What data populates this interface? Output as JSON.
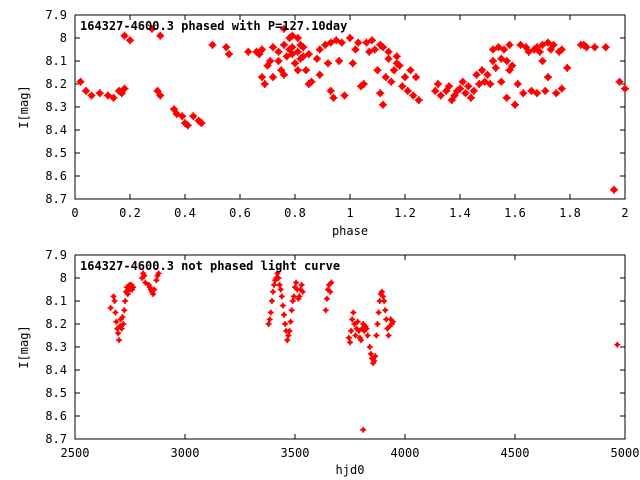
{
  "chart_data": [
    {
      "type": "scatter",
      "title": "164327-4600.3 phased with P=127.10day",
      "xlabel": "phase",
      "ylabel": "I[mag]",
      "xlim": [
        0,
        2
      ],
      "ylim": [
        8.7,
        7.9
      ],
      "y_inverted": true,
      "x_ticks": [
        "0",
        "0.2",
        "0.4",
        "0.6",
        "0.8",
        "1",
        "1.2",
        "1.4",
        "1.6",
        "1.8",
        "2"
      ],
      "y_ticks": [
        "7.9",
        "8",
        "8.1",
        "8.2",
        "8.3",
        "8.4",
        "8.5",
        "8.6",
        "8.7"
      ],
      "grid": false,
      "marker_color": "#ff0000",
      "points": [
        [
          0.02,
          8.19
        ],
        [
          0.04,
          8.23
        ],
        [
          0.06,
          8.25
        ],
        [
          0.09,
          8.24
        ],
        [
          0.12,
          8.25
        ],
        [
          0.14,
          8.26
        ],
        [
          0.16,
          8.23
        ],
        [
          0.17,
          8.24
        ],
        [
          0.18,
          8.22
        ],
        [
          0.18,
          7.99
        ],
        [
          0.2,
          8.01
        ],
        [
          0.28,
          7.96
        ],
        [
          0.3,
          8.23
        ],
        [
          0.31,
          8.25
        ],
        [
          0.31,
          7.99
        ],
        [
          0.36,
          8.31
        ],
        [
          0.37,
          8.33
        ],
        [
          0.39,
          8.34
        ],
        [
          0.4,
          8.37
        ],
        [
          0.41,
          8.38
        ],
        [
          0.43,
          8.34
        ],
        [
          0.45,
          8.36
        ],
        [
          0.46,
          8.37
        ],
        [
          0.5,
          8.03
        ],
        [
          0.55,
          8.04
        ],
        [
          0.56,
          8.07
        ],
        [
          0.63,
          8.06
        ],
        [
          0.66,
          8.06
        ],
        [
          0.67,
          8.07
        ],
        [
          0.68,
          8.05
        ],
        [
          0.68,
          8.17
        ],
        [
          0.69,
          8.2
        ],
        [
          0.7,
          8.12
        ],
        [
          0.71,
          8.1
        ],
        [
          0.72,
          8.17
        ],
        [
          0.72,
          8.04
        ],
        [
          0.74,
          8.1
        ],
        [
          0.74,
          8.06
        ],
        [
          0.75,
          8.14
        ],
        [
          0.76,
          8.16
        ],
        [
          0.76,
          8.03
        ],
        [
          0.76,
          7.96
        ],
        [
          0.77,
          8.08
        ],
        [
          0.78,
          8.05
        ],
        [
          0.78,
          8.0
        ],
        [
          0.79,
          8.04
        ],
        [
          0.79,
          8.07
        ],
        [
          0.79,
          7.99
        ],
        [
          0.8,
          8.11
        ],
        [
          0.81,
          8.14
        ],
        [
          0.81,
          8.0
        ],
        [
          0.81,
          8.06
        ],
        [
          0.82,
          8.03
        ],
        [
          0.82,
          8.09
        ],
        [
          0.83,
          8.04
        ],
        [
          0.83,
          8.08
        ],
        [
          0.84,
          8.14
        ],
        [
          0.85,
          8.07
        ],
        [
          0.85,
          8.2
        ],
        [
          0.86,
          8.19
        ],
        [
          0.88,
          8.09
        ],
        [
          0.89,
          8.05
        ],
        [
          0.89,
          8.16
        ],
        [
          0.91,
          8.03
        ],
        [
          0.92,
          8.11
        ],
        [
          0.93,
          8.23
        ],
        [
          0.93,
          8.02
        ],
        [
          0.94,
          8.26
        ],
        [
          0.95,
          8.01
        ],
        [
          0.96,
          8.1
        ],
        [
          0.97,
          8.02
        ],
        [
          0.98,
          8.25
        ],
        [
          1.0,
          8.0
        ],
        [
          1.01,
          8.11
        ],
        [
          1.02,
          8.05
        ],
        [
          1.03,
          8.02
        ],
        [
          1.04,
          8.21
        ],
        [
          1.05,
          8.2
        ],
        [
          1.06,
          8.02
        ],
        [
          1.07,
          8.06
        ],
        [
          1.08,
          8.01
        ],
        [
          1.09,
          8.05
        ],
        [
          1.1,
          8.14
        ],
        [
          1.11,
          8.24
        ],
        [
          1.11,
          8.03
        ],
        [
          1.12,
          8.29
        ],
        [
          1.12,
          8.04
        ],
        [
          1.13,
          8.17
        ],
        [
          1.14,
          8.09
        ],
        [
          1.14,
          8.06
        ],
        [
          1.15,
          8.19
        ],
        [
          1.16,
          8.14
        ],
        [
          1.17,
          8.11
        ],
        [
          1.17,
          8.08
        ],
        [
          1.18,
          8.12
        ],
        [
          1.19,
          8.21
        ],
        [
          1.2,
          8.17
        ],
        [
          1.21,
          8.23
        ],
        [
          1.22,
          8.14
        ],
        [
          1.23,
          8.25
        ],
        [
          1.24,
          8.17
        ],
        [
          1.25,
          8.27
        ],
        [
          1.31,
          8.23
        ],
        [
          1.32,
          8.2
        ],
        [
          1.33,
          8.25
        ],
        [
          1.35,
          8.23
        ],
        [
          1.36,
          8.21
        ],
        [
          1.37,
          8.27
        ],
        [
          1.38,
          8.25
        ],
        [
          1.39,
          8.23
        ],
        [
          1.4,
          8.22
        ],
        [
          1.41,
          8.19
        ],
        [
          1.42,
          8.24
        ],
        [
          1.43,
          8.21
        ],
        [
          1.44,
          8.26
        ],
        [
          1.45,
          8.23
        ],
        [
          1.46,
          8.16
        ],
        [
          1.47,
          8.2
        ],
        [
          1.48,
          8.14
        ],
        [
          1.49,
          8.19
        ],
        [
          1.5,
          8.16
        ],
        [
          1.51,
          8.2
        ],
        [
          1.52,
          8.1
        ],
        [
          1.52,
          8.05
        ],
        [
          1.53,
          8.13
        ],
        [
          1.54,
          8.04
        ],
        [
          1.55,
          8.09
        ],
        [
          1.55,
          8.19
        ],
        [
          1.56,
          8.05
        ],
        [
          1.57,
          8.1
        ],
        [
          1.57,
          8.26
        ],
        [
          1.58,
          8.14
        ],
        [
          1.58,
          8.03
        ],
        [
          1.59,
          8.12
        ],
        [
          1.6,
          8.29
        ],
        [
          1.61,
          8.2
        ],
        [
          1.62,
          8.03
        ],
        [
          1.63,
          8.24
        ],
        [
          1.64,
          8.04
        ],
        [
          1.65,
          8.06
        ],
        [
          1.66,
          8.23
        ],
        [
          1.67,
          8.05
        ],
        [
          1.68,
          8.24
        ],
        [
          1.68,
          8.04
        ],
        [
          1.69,
          8.06
        ],
        [
          1.7,
          8.03
        ],
        [
          1.7,
          8.1
        ],
        [
          1.71,
          8.23
        ],
        [
          1.72,
          8.17
        ],
        [
          1.72,
          8.02
        ],
        [
          1.73,
          8.05
        ],
        [
          1.74,
          8.03
        ],
        [
          1.75,
          8.24
        ],
        [
          1.76,
          8.06
        ],
        [
          1.77,
          8.05
        ],
        [
          1.77,
          8.22
        ],
        [
          1.79,
          8.13
        ],
        [
          1.84,
          8.03
        ],
        [
          1.85,
          8.03
        ],
        [
          1.86,
          8.04
        ],
        [
          1.89,
          8.04
        ],
        [
          1.93,
          8.04
        ],
        [
          1.96,
          8.66
        ],
        [
          1.98,
          8.19
        ],
        [
          2.0,
          8.22
        ]
      ]
    },
    {
      "type": "scatter",
      "title": "164327-4600.3 not phased light curve",
      "xlabel": "hjd0",
      "ylabel": "I[mag]",
      "xlim": [
        2500,
        5000
      ],
      "ylim": [
        8.7,
        7.9
      ],
      "y_inverted": true,
      "x_ticks": [
        "2500",
        "3000",
        "3500",
        "4000",
        "4500",
        "5000"
      ],
      "y_ticks": [
        "7.9",
        "8",
        "8.1",
        "8.2",
        "8.3",
        "8.4",
        "8.5",
        "8.6",
        "8.7"
      ],
      "grid": false,
      "marker_color": "#ff0000",
      "points": [
        [
          2662,
          8.13
        ],
        [
          2675,
          8.08
        ],
        [
          2680,
          8.1
        ],
        [
          2684,
          8.15
        ],
        [
          2688,
          8.19
        ],
        [
          2692,
          8.22
        ],
        [
          2696,
          8.24
        ],
        [
          2700,
          8.27
        ],
        [
          2704,
          8.21
        ],
        [
          2708,
          8.18
        ],
        [
          2712,
          8.22
        ],
        [
          2716,
          8.17
        ],
        [
          2720,
          8.2
        ],
        [
          2724,
          8.14
        ],
        [
          2728,
          8.1
        ],
        [
          2732,
          8.06
        ],
        [
          2736,
          8.04
        ],
        [
          2740,
          8.07
        ],
        [
          2744,
          8.05
        ],
        [
          2748,
          8.03
        ],
        [
          2752,
          8.05
        ],
        [
          2756,
          8.03
        ],
        [
          2760,
          8.05
        ],
        [
          2764,
          8.04
        ],
        [
          2805,
          8.0
        ],
        [
          2810,
          7.98
        ],
        [
          2815,
          7.99
        ],
        [
          2820,
          8.02
        ],
        [
          2835,
          8.03
        ],
        [
          2840,
          8.04
        ],
        [
          2845,
          8.05
        ],
        [
          2850,
          8.06
        ],
        [
          2855,
          8.07
        ],
        [
          2860,
          8.05
        ],
        [
          2870,
          8.01
        ],
        [
          2875,
          7.99
        ],
        [
          2880,
          7.98
        ],
        [
          3380,
          8.2
        ],
        [
          3385,
          8.18
        ],
        [
          3390,
          8.15
        ],
        [
          3395,
          8.1
        ],
        [
          3400,
          8.06
        ],
        [
          3405,
          8.03
        ],
        [
          3410,
          8.01
        ],
        [
          3415,
          8.0
        ],
        [
          3420,
          7.98
        ],
        [
          3425,
          8.0
        ],
        [
          3430,
          8.03
        ],
        [
          3435,
          8.05
        ],
        [
          3440,
          8.08
        ],
        [
          3445,
          8.12
        ],
        [
          3450,
          8.16
        ],
        [
          3455,
          8.2
        ],
        [
          3460,
          8.23
        ],
        [
          3465,
          8.27
        ],
        [
          3470,
          8.25
        ],
        [
          3475,
          8.23
        ],
        [
          3480,
          8.19
        ],
        [
          3485,
          8.14
        ],
        [
          3490,
          8.1
        ],
        [
          3495,
          8.08
        ],
        [
          3500,
          8.04
        ],
        [
          3505,
          8.02
        ],
        [
          3510,
          8.05
        ],
        [
          3515,
          8.09
        ],
        [
          3520,
          8.08
        ],
        [
          3525,
          8.05
        ],
        [
          3530,
          8.03
        ],
        [
          3535,
          8.06
        ],
        [
          3640,
          8.14
        ],
        [
          3645,
          8.09
        ],
        [
          3650,
          8.05
        ],
        [
          3655,
          8.03
        ],
        [
          3660,
          8.06
        ],
        [
          3665,
          8.02
        ],
        [
          3745,
          8.26
        ],
        [
          3750,
          8.28
        ],
        [
          3755,
          8.23
        ],
        [
          3760,
          8.18
        ],
        [
          3765,
          8.15
        ],
        [
          3770,
          8.2
        ],
        [
          3775,
          8.25
        ],
        [
          3780,
          8.22
        ],
        [
          3785,
          8.19
        ],
        [
          3790,
          8.23
        ],
        [
          3795,
          8.26
        ],
        [
          3800,
          8.27
        ],
        [
          3805,
          8.22
        ],
        [
          3810,
          8.2
        ],
        [
          3815,
          8.23
        ],
        [
          3820,
          8.21
        ],
        [
          3825,
          8.22
        ],
        [
          3830,
          8.25
        ],
        [
          3840,
          8.3
        ],
        [
          3845,
          8.33
        ],
        [
          3850,
          8.35
        ],
        [
          3855,
          8.37
        ],
        [
          3860,
          8.36
        ],
        [
          3865,
          8.34
        ],
        [
          3870,
          8.25
        ],
        [
          3875,
          8.2
        ],
        [
          3880,
          8.15
        ],
        [
          3885,
          8.1
        ],
        [
          3890,
          8.07
        ],
        [
          3895,
          8.06
        ],
        [
          3900,
          8.08
        ],
        [
          3905,
          8.1
        ],
        [
          3910,
          8.14
        ],
        [
          3915,
          8.18
        ],
        [
          3920,
          8.22
        ],
        [
          3925,
          8.25
        ],
        [
          3930,
          8.21
        ],
        [
          3935,
          8.18
        ],
        [
          3940,
          8.2
        ],
        [
          3945,
          8.19
        ],
        [
          3810,
          8.66
        ],
        [
          4965,
          8.29
        ]
      ]
    }
  ]
}
